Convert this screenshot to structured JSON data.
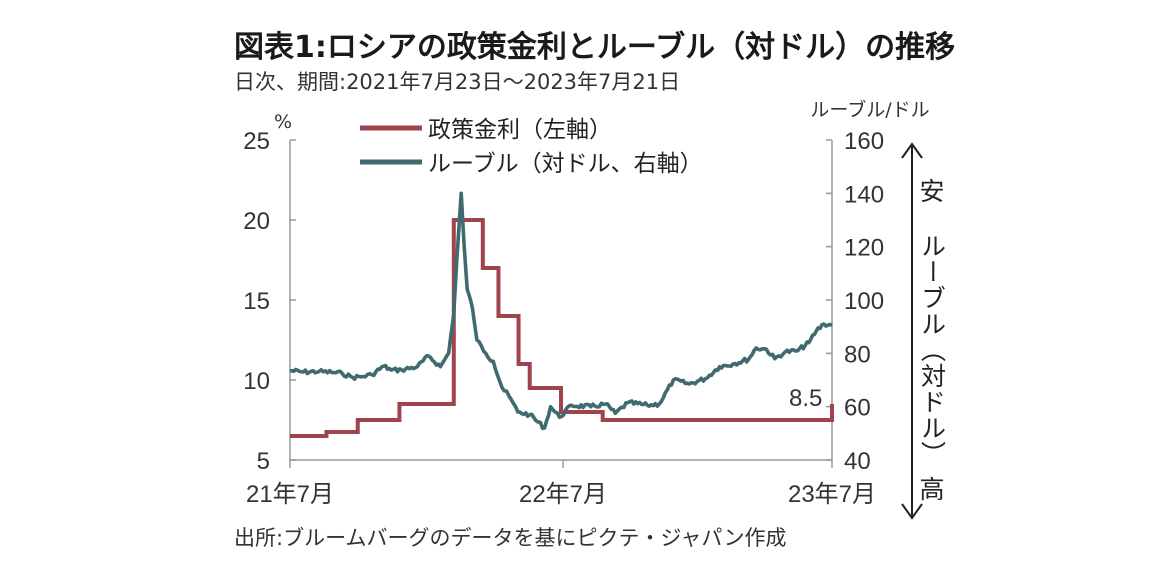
{
  "title": "図表1:ロシアの政策金利とルーブル（対ドル）の推移",
  "subtitle": "日次、期間:2021年7月23日～2023年7月21日",
  "source": "出所:ブルームバーグのデータを基にピクテ・ジャパン作成",
  "colors": {
    "rate": "#a1434d",
    "ruble": "#3f6b70",
    "axis": "#555555"
  },
  "chart_data": {
    "type": "line",
    "left_unit": "%",
    "right_unit": "ルーブル/ドル",
    "ylim_left": [
      5,
      25
    ],
    "ylim_right": [
      40,
      160
    ],
    "yticks_left": [
      "25",
      "20",
      "15",
      "10",
      "5"
    ],
    "yticks_right": [
      "160",
      "140",
      "120",
      "100",
      "80",
      "60",
      "40"
    ],
    "xticks": [
      "21年7月",
      "22年7月",
      "23年7月"
    ],
    "x_range": [
      "2021-07-23",
      "2023-07-21"
    ],
    "legend": [
      "政策金利（左軸）",
      "ルーブル（対ドル、右軸）"
    ],
    "annotation": "8.5",
    "side_label_top": "安",
    "side_label_middle": "ルーブル（対ドル）",
    "side_label_bottom": "高",
    "series": [
      {
        "name": "政策金利（左軸）",
        "axis": "left",
        "points": [
          [
            "2021-07-23",
            6.5
          ],
          [
            "2021-09-10",
            6.75
          ],
          [
            "2021-10-22",
            7.5
          ],
          [
            "2021-12-17",
            8.5
          ],
          [
            "2022-02-28",
            20.0
          ],
          [
            "2022-04-08",
            17.0
          ],
          [
            "2022-04-29",
            14.0
          ],
          [
            "2022-05-26",
            11.0
          ],
          [
            "2022-06-10",
            9.5
          ],
          [
            "2022-07-22",
            8.0
          ],
          [
            "2022-09-16",
            7.5
          ],
          [
            "2023-07-21",
            8.5
          ]
        ]
      },
      {
        "name": "ルーブル（対ドル、右軸）",
        "axis": "right",
        "points": [
          [
            "2021-07-23",
            73.5
          ],
          [
            "2021-08-10",
            73.0
          ],
          [
            "2021-08-31",
            73.2
          ],
          [
            "2021-09-20",
            72.8
          ],
          [
            "2021-10-01",
            72.5
          ],
          [
            "2021-10-15",
            71.0
          ],
          [
            "2021-10-29",
            71.3
          ],
          [
            "2021-11-10",
            72.0
          ],
          [
            "2021-11-26",
            75.2
          ],
          [
            "2021-12-06",
            73.7
          ],
          [
            "2021-12-20",
            73.8
          ],
          [
            "2022-01-10",
            75.0
          ],
          [
            "2022-01-25",
            79.0
          ],
          [
            "2022-02-10",
            75.0
          ],
          [
            "2022-02-21",
            80.0
          ],
          [
            "2022-02-28",
            95.0
          ],
          [
            "2022-03-04",
            115.0
          ],
          [
            "2022-03-10",
            140.0
          ],
          [
            "2022-03-14",
            120.0
          ],
          [
            "2022-03-18",
            104.0
          ],
          [
            "2022-03-25",
            97.0
          ],
          [
            "2022-03-31",
            85.0
          ],
          [
            "2022-04-12",
            80.0
          ],
          [
            "2022-04-22",
            77.0
          ],
          [
            "2022-05-04",
            67.0
          ],
          [
            "2022-05-13",
            64.0
          ],
          [
            "2022-05-25",
            58.0
          ],
          [
            "2022-06-10",
            57.0
          ],
          [
            "2022-06-30",
            52.0
          ],
          [
            "2022-07-08",
            60.0
          ],
          [
            "2022-07-20",
            56.0
          ],
          [
            "2022-08-05",
            60.5
          ],
          [
            "2022-08-31",
            60.0
          ],
          [
            "2022-09-20",
            61.0
          ],
          [
            "2022-10-03",
            57.5
          ],
          [
            "2022-10-20",
            61.5
          ],
          [
            "2022-11-15",
            60.5
          ],
          [
            "2022-12-01",
            61.0
          ],
          [
            "2022-12-20",
            70.0
          ],
          [
            "2023-01-10",
            68.5
          ],
          [
            "2023-02-01",
            70.5
          ],
          [
            "2023-02-20",
            75.0
          ],
          [
            "2023-03-10",
            76.0
          ],
          [
            "2023-03-31",
            77.8
          ],
          [
            "2023-04-10",
            82.0
          ],
          [
            "2023-04-24",
            81.5
          ],
          [
            "2023-05-05",
            78.0
          ],
          [
            "2023-05-19",
            80.5
          ],
          [
            "2023-06-05",
            81.0
          ],
          [
            "2023-06-20",
            84.0
          ],
          [
            "2023-06-30",
            88.5
          ],
          [
            "2023-07-10",
            91.0
          ],
          [
            "2023-07-21",
            90.5
          ]
        ]
      }
    ]
  }
}
